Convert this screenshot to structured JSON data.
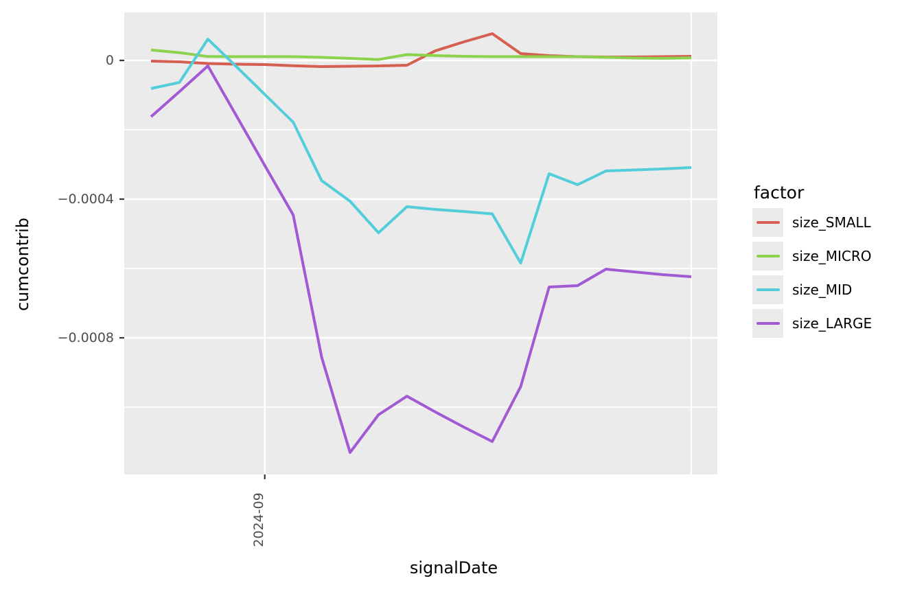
{
  "y_axis": {
    "title": "cumcontrib",
    "tick_labels": [
      "0",
      "−0.0004",
      "−0.0008"
    ]
  },
  "x_axis": {
    "title": "signalDate",
    "tick_labels": [
      "2024-09"
    ]
  },
  "legend": {
    "title": "factor",
    "items": [
      {
        "label": "size_SMALL",
        "color": "#d65f51"
      },
      {
        "label": "size_MICRO",
        "color": "#8cd24c"
      },
      {
        "label": "size_MID",
        "color": "#53cdd9"
      },
      {
        "label": "size_LARGE",
        "color": "#a15ad4"
      }
    ]
  },
  "chart_data": {
    "type": "line",
    "xlabel": "signalDate",
    "ylabel": "cumcontrib",
    "num_points": 20,
    "x_tick_labels": [
      {
        "index": 4,
        "label": "2024-09"
      }
    ],
    "x_major_gridline_indices": [
      4,
      19
    ],
    "y_ticks": [
      {
        "value": 0.0,
        "label": "0"
      },
      {
        "value": -0.0004,
        "label": "−0.0004"
      },
      {
        "value": -0.0008,
        "label": "−0.0008"
      }
    ],
    "y_minor_gridlines": [
      -0.0002,
      -0.0006,
      -0.001
    ],
    "ylim": [
      -0.001194,
      0.000139
    ],
    "grid": true,
    "legend_position": "right",
    "series": [
      {
        "name": "size_SMALL",
        "color": "#d65f51",
        "values": [
          -2e-06,
          -4e-06,
          -8.9e-06,
          -1.09e-05,
          -1.19e-05,
          -1.54e-05,
          -1.78e-05,
          -1.68e-05,
          -1.58e-05,
          -1.39e-05,
          2.77e-05,
          5.35e-05,
          7.72e-05,
          1.98e-05,
          1.39e-05,
          1.09e-05,
          9.9e-06,
          9.9e-06,
          1.09e-05,
          1.19e-05
        ]
      },
      {
        "name": "size_MICRO",
        "color": "#8cd24c",
        "values": [
          3.03e-05,
          2.24e-05,
          1.13e-05,
          1.09e-05,
          1.09e-05,
          1.09e-05,
          8.9e-06,
          5.9e-06,
          2.6e-06,
          1.68e-05,
          1.39e-05,
          1.19e-05,
          1.09e-05,
          1.09e-05,
          1.09e-05,
          1.09e-05,
          8.9e-06,
          6.9e-06,
          5.9e-06,
          7.3e-06
        ]
      },
      {
        "name": "size_MID",
        "color": "#53cdd9",
        "values": [
          -8.12e-05,
          -6.34e-05,
          6.14e-05,
          -1.78e-05,
          -9.8e-05,
          -0.0001782,
          -0.0003465,
          -0.0004059,
          -0.000497,
          -0.0004218,
          -0.0004297,
          -0.0004356,
          -0.0004426,
          -0.0005842,
          -0.0003267,
          -0.0003584,
          -0.0003188,
          -0.0003158,
          -0.0003129,
          -0.0003089
        ]
      },
      {
        "name": "size_LARGE",
        "color": "#a15ad4",
        "values": [
          -0.0001624,
          -8.99e-05,
          -1.58e-05,
          -0.0001594,
          -0.000303,
          -0.0004455,
          -0.0008554,
          -0.0011307,
          -0.0010217,
          -0.0009683,
          -0.0010138,
          -0.0010574,
          -0.001099,
          -0.0009406,
          -0.0006535,
          -0.0006495,
          -0.000602,
          -0.0006099,
          -0.0006178,
          -0.0006238
        ]
      }
    ]
  }
}
